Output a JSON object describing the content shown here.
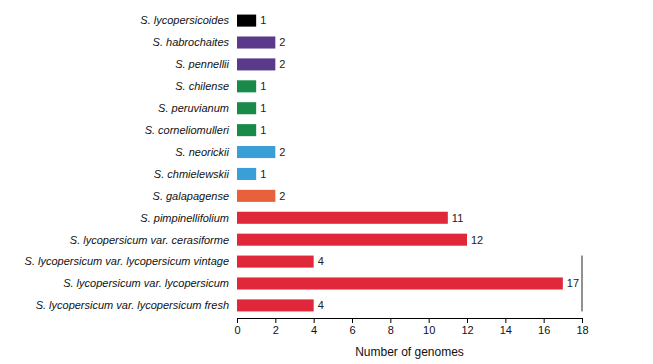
{
  "chart_data": {
    "type": "bar",
    "orientation": "horizontal",
    "x_label": "Number of genomes",
    "categories": [
      "S. lycopersicoides",
      "S. habrochaites",
      "S. pennellii",
      "S. chilense",
      "S. peruvianum",
      "S. corneliomulleri",
      "S. neorickii",
      "S. chmielewskii",
      "S. galapagense",
      "S. pimpinellifolium",
      "S. lycopersicum var. cerasiforme",
      "S. lycopersicum var. lycopersicum vintage",
      "S. lycopersicum var. lycopersicum",
      "S. lycopersicum var. lycopersicum fresh"
    ],
    "values": [
      1,
      2,
      2,
      1,
      1,
      1,
      2,
      1,
      2,
      11,
      12,
      4,
      17,
      4
    ],
    "colors": [
      "#000000",
      "#5b3a8c",
      "#5b3a8c",
      "#1a8a4a",
      "#1a8a4a",
      "#1a8a4a",
      "#3a9fd6",
      "#3a9fd6",
      "#e8603c",
      "#e0283a",
      "#e0283a",
      "#e0283a",
      "#e0283a",
      "#e0283a"
    ],
    "xlim": [
      0,
      18
    ],
    "xticks": [
      0,
      2,
      4,
      6,
      8,
      10,
      12,
      14,
      16,
      18
    ],
    "data_labels": true
  }
}
